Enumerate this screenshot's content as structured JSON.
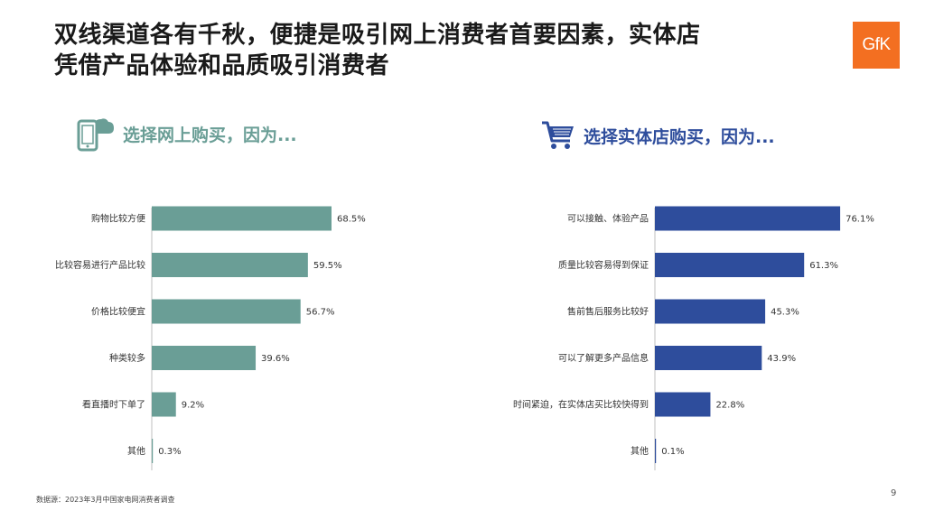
{
  "title": {
    "line1": "双线渠道各有千秋，便捷是吸引网上消费者首要因素，实体店",
    "line2": "凭借产品体验和品质吸引消费者"
  },
  "logo_text": "GfK",
  "colors": {
    "online": "#6a9e96",
    "offline": "#2e4d9c",
    "logo": "#f36f21"
  },
  "online_heading": "选择网上购买，因为...",
  "offline_heading": "选择实体店购买，因为...",
  "chart_data": [
    {
      "type": "bar",
      "orientation": "horizontal",
      "categories": [
        "购物比较方便",
        "比较容易进行产品比较",
        "价格比较便宜",
        "种类较多",
        "看直播时下单了",
        "其他"
      ],
      "values": [
        68.5,
        59.5,
        56.7,
        39.6,
        9.2,
        0.3
      ],
      "data_labels": [
        "68.5%",
        "59.5%",
        "56.7%",
        "39.6%",
        "9.2%",
        "0.3%"
      ],
      "unit": "%"
    },
    {
      "type": "bar",
      "orientation": "horizontal",
      "categories": [
        "可以接触、体验产品",
        "质量比较容易得到保证",
        "售前售后服务比较好",
        "可以了解更多产品信息",
        "时间紧迫，在实体店买比较快得到",
        "其他"
      ],
      "values": [
        76.1,
        61.3,
        45.3,
        43.9,
        22.8,
        0.1
      ],
      "data_labels": [
        "76.1%",
        "61.3%",
        "45.3%",
        "43.9%",
        "22.8%",
        "0.1%"
      ],
      "unit": "%"
    }
  ],
  "source": "数据源：2023年3月中国家电网消费者调查",
  "page_number": "9"
}
